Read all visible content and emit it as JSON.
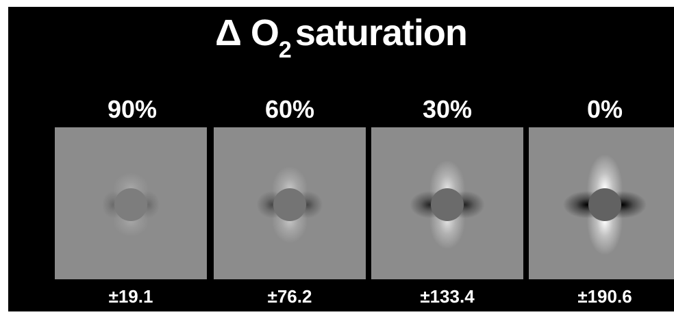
{
  "title": {
    "prefix": "Δ O",
    "subscript": "2",
    "suffix": "saturation"
  },
  "panels": [
    {
      "label": "90%",
      "range": "±19.1",
      "intensity": 0.1
    },
    {
      "label": "60%",
      "range": "±76.2",
      "intensity": 0.4
    },
    {
      "label": "30%",
      "range": "±133.4",
      "intensity": 0.7
    },
    {
      "label": "0%",
      "range": "±190.6",
      "intensity": 1.0
    }
  ],
  "colors": {
    "background": "#000000",
    "panel_gray": "#8c8c8c",
    "text": "#ffffff"
  }
}
